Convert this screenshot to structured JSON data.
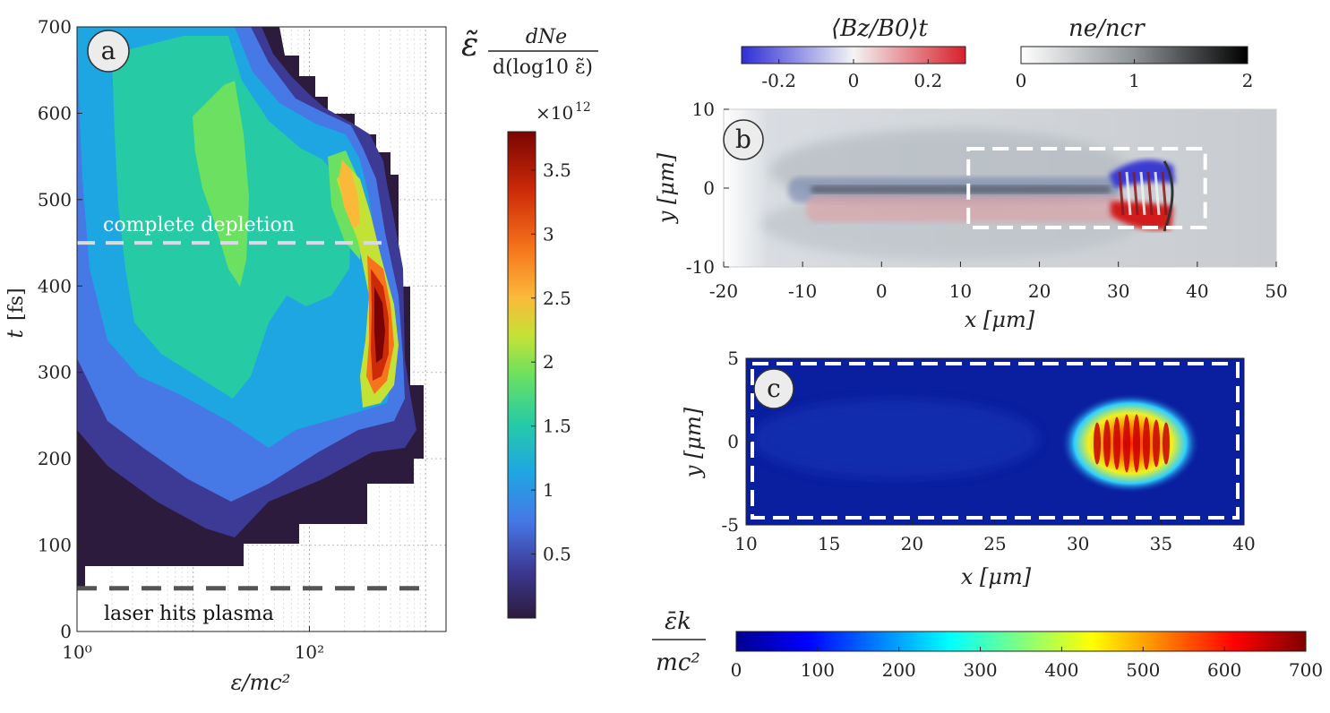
{
  "chart_data": [
    {
      "panel": "a",
      "type": "heatmap",
      "x_scale": "log",
      "xlim": [
        1,
        1500
      ],
      "ylim": [
        0,
        700
      ],
      "xlabel": "ε/mc²",
      "ylabel": "t [fs]",
      "x_ticks": [
        {
          "value": 1,
          "label": "10⁰"
        },
        {
          "value": 100,
          "label": "10²"
        }
      ],
      "y_ticks": [
        0,
        100,
        200,
        300,
        400,
        500,
        600,
        700
      ],
      "colorbar": {
        "title": "ε̃ dNₑ / d(log₁₀ ε̃)",
        "multiplier": "×10¹²",
        "range": [
          0,
          3.8
        ],
        "ticks": [
          0.5,
          1,
          1.5,
          2,
          2.5,
          3,
          3.5
        ]
      },
      "annotations": [
        {
          "text": "complete depletion",
          "t": 450,
          "line_color": "#d8dbe6"
        },
        {
          "text": "laser hits plasma",
          "t": 50,
          "line_color": "#555555"
        }
      ]
    },
    {
      "panel": "b",
      "type": "heatmap",
      "xlim": [
        -20,
        50
      ],
      "ylim": [
        -10,
        10
      ],
      "xlabel": "x [μm]",
      "ylabel": "y [μm]",
      "x_ticks": [
        -20,
        -10,
        0,
        10,
        20,
        30,
        40,
        50
      ],
      "y_ticks": [
        -10,
        0,
        10
      ],
      "zoom_box": {
        "x": [
          11,
          41
        ],
        "y": [
          -5,
          5
        ]
      },
      "colorbars": [
        {
          "title": "⟨B_z/B₀⟩_t",
          "range": [
            -0.3,
            0.3
          ],
          "ticks": [
            "-0.2",
            "0",
            "0.2"
          ]
        },
        {
          "title": "nₑ/n_cr",
          "range": [
            0,
            2
          ],
          "ticks": [
            "0",
            "1",
            "2"
          ]
        }
      ]
    },
    {
      "panel": "c",
      "type": "heatmap",
      "xlim": [
        10,
        40
      ],
      "ylim": [
        -5,
        5
      ],
      "xlabel": "x [μm]",
      "ylabel": "y [μm]",
      "x_ticks": [
        10,
        15,
        20,
        25,
        30,
        35,
        40
      ],
      "y_ticks": [
        -5,
        0,
        5
      ],
      "colorbar": {
        "title": "ε̄ₖ / mc²",
        "range": [
          0,
          700
        ],
        "ticks": [
          0,
          100,
          200,
          300,
          400,
          500,
          600,
          700
        ]
      }
    }
  ],
  "panel_labels": {
    "a": "a",
    "b": "b",
    "c": "c"
  },
  "text": {
    "depletion": "complete depletion",
    "laser": "laser hits plasma",
    "cbA_top": "dNe",
    "cbA_bot": "d(log10 ε̃)",
    "cbA_mult": "×10",
    "cbA_exp": "12",
    "cbB1_title": "⟨Bz/B0⟩t",
    "cbB2_title": "ne/ncr",
    "cbC_top": "ε̄k",
    "cbC_bot": "mc²",
    "a_xlabel": "ε/mc²",
    "a_ylabel_t": "t",
    "a_ylabel_u": "[fs]",
    "b_xlabel": "x [μm]",
    "b_ylabel": "y [μm]",
    "c_xlabel": "x [μm]",
    "c_ylabel": "y [μm]"
  },
  "colors": {
    "a_background": "#2c1b3c",
    "c_background": "#0a1ea0",
    "red": "#d21e1e",
    "blue": "#3a3ad2"
  }
}
